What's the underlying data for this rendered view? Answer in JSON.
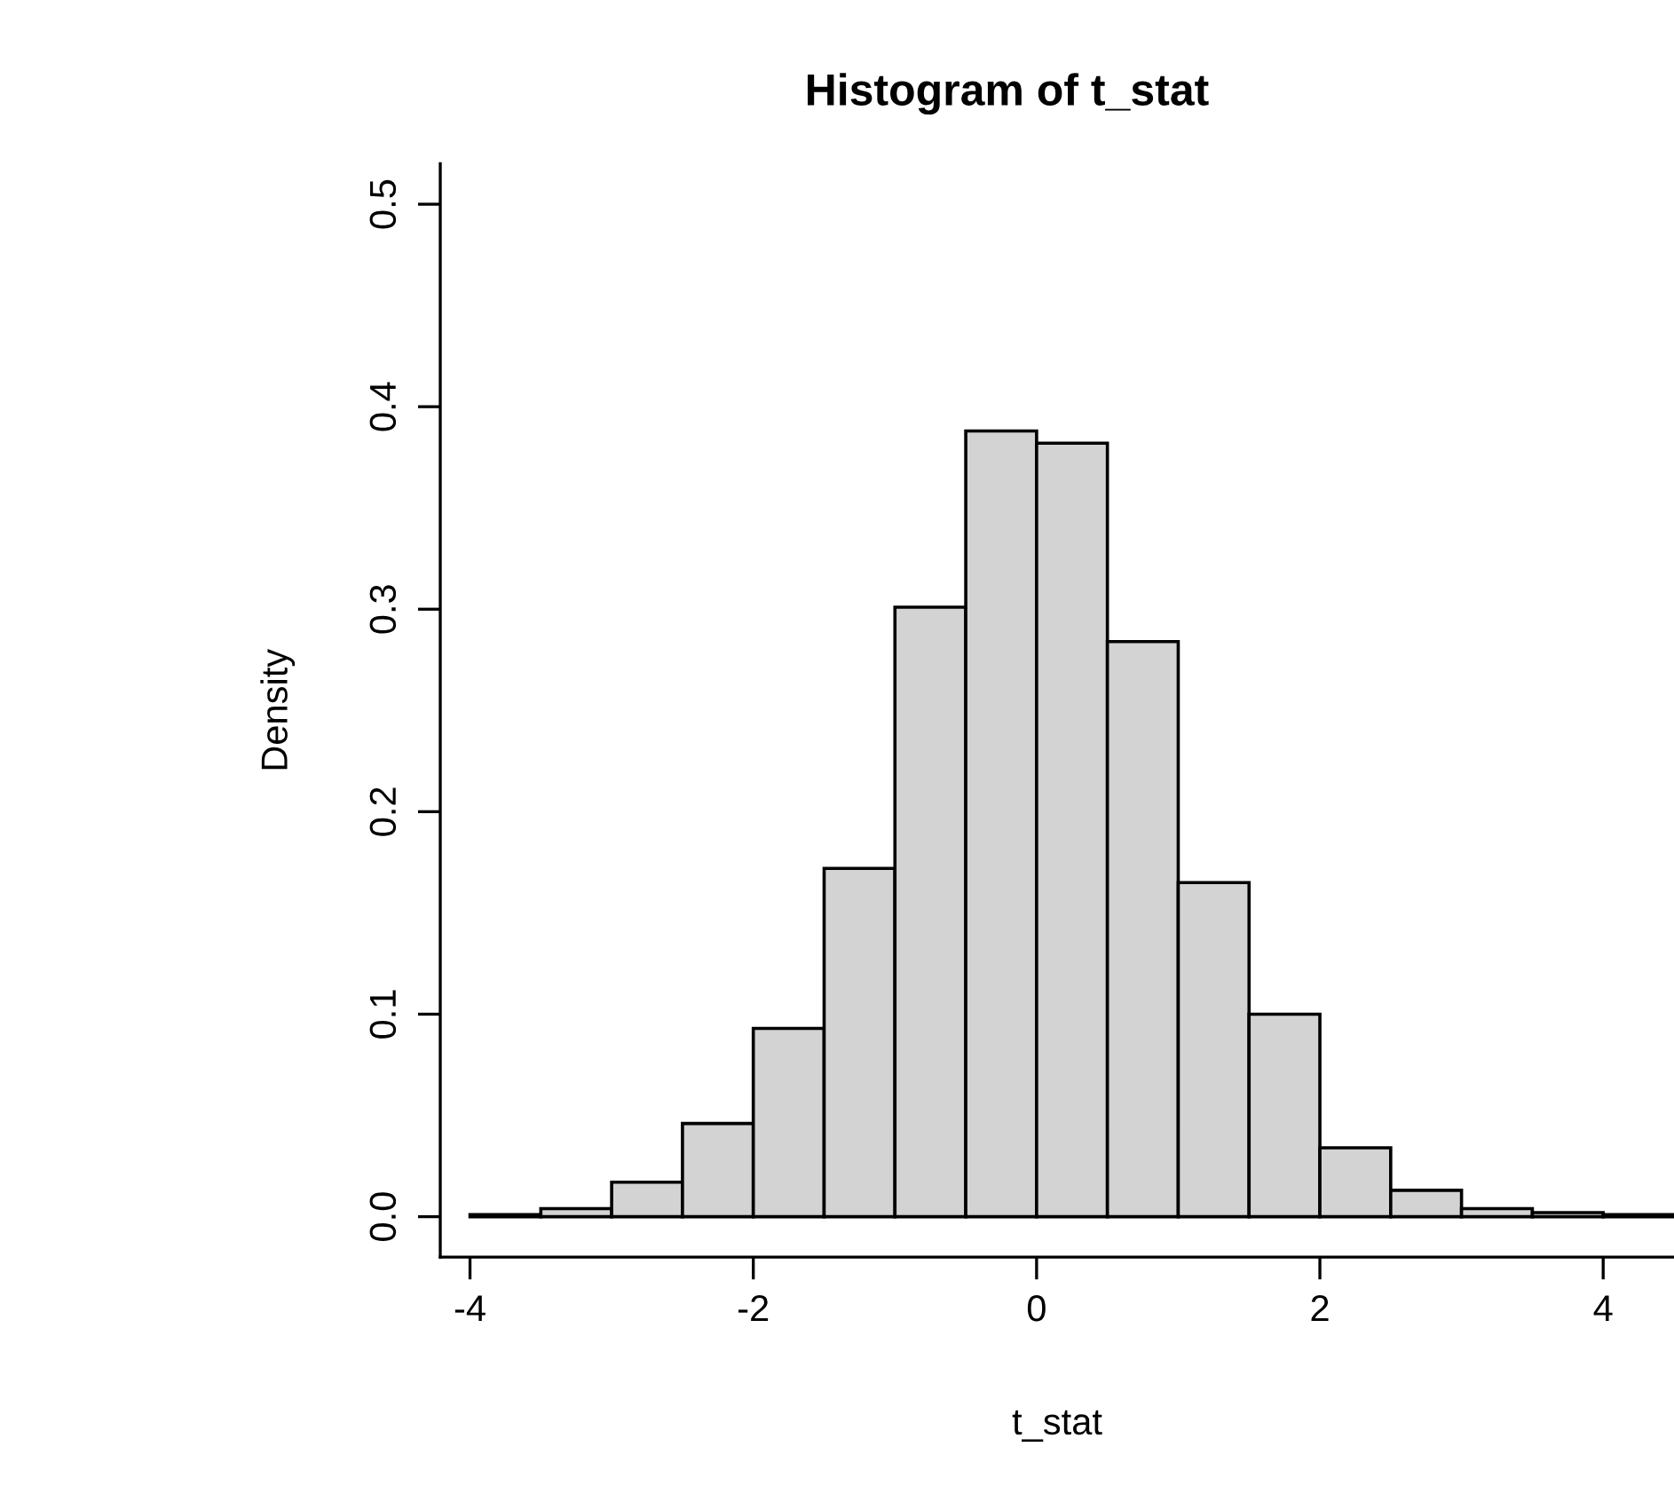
{
  "chart_data": {
    "type": "histogram",
    "title": "Histogram of t_stat",
    "xlabel": "t_stat",
    "ylabel": "Density",
    "bins": [
      -4,
      -3.5,
      -3,
      -2.5,
      -2,
      -1.5,
      -1,
      -0.5,
      0,
      0.5,
      1,
      1.5,
      2,
      2.5,
      3,
      3.5,
      4,
      4.5
    ],
    "values": [
      0.001,
      0.004,
      0.017,
      0.046,
      0.093,
      0.172,
      0.301,
      0.388,
      0.382,
      0.284,
      0.165,
      0.1,
      0.034,
      0.013,
      0.004,
      0.002,
      0.001
    ],
    "color": "#d3d3d3",
    "xlim": [
      -4.21,
      4.5
    ],
    "xticks": [
      -4,
      -2,
      0,
      2,
      4
    ],
    "ylim": [
      -0.02,
      0.52
    ],
    "yticks": [
      {
        "value": 0,
        "label": "0.0"
      },
      0.1,
      0.2,
      0.3,
      0.4,
      0.5
    ],
    "grid": false
  }
}
